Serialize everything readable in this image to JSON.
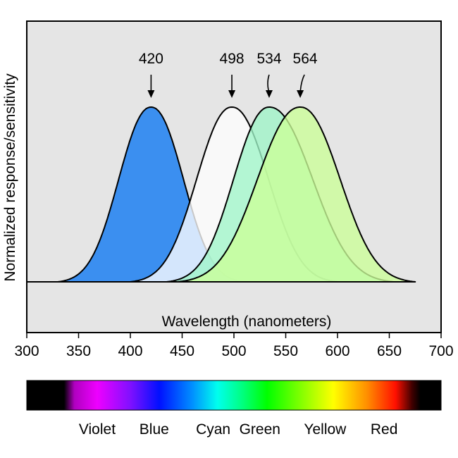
{
  "chart_data": {
    "type": "area",
    "title": "",
    "xlabel": "Wavelength (nanometers)",
    "ylabel": "Normalized response/sensitivity",
    "xlim": [
      300,
      700
    ],
    "x_ticks": [
      "300",
      "350",
      "400",
      "450",
      "500",
      "550",
      "600",
      "650",
      "700"
    ],
    "grid": false,
    "background_color": "#e5e5e5",
    "series": [
      {
        "peak": 420,
        "peak_label": "420",
        "fill_color": "#3b8ff0",
        "range": [
          330,
          510
        ]
      },
      {
        "peak": 498,
        "peak_label": "498",
        "fill_color": "#ffffff",
        "range": [
          400,
          600
        ]
      },
      {
        "peak": 534,
        "peak_label": "534",
        "fill_color": "#9ff5c8",
        "range": [
          435,
          655
        ]
      },
      {
        "peak": 564,
        "peak_label": "564",
        "fill_color": "#ccff99",
        "range": [
          445,
          675
        ]
      }
    ],
    "spectrum_bar": {
      "range": [
        300,
        700
      ],
      "labels": [
        {
          "text": "Violet",
          "wavelength": 368
        },
        {
          "text": "Blue",
          "wavelength": 423
        },
        {
          "text": "Cyan",
          "wavelength": 480
        },
        {
          "text": "Green",
          "wavelength": 525
        },
        {
          "text": "Yellow",
          "wavelength": 588
        },
        {
          "text": "Red",
          "wavelength": 645
        }
      ]
    }
  }
}
